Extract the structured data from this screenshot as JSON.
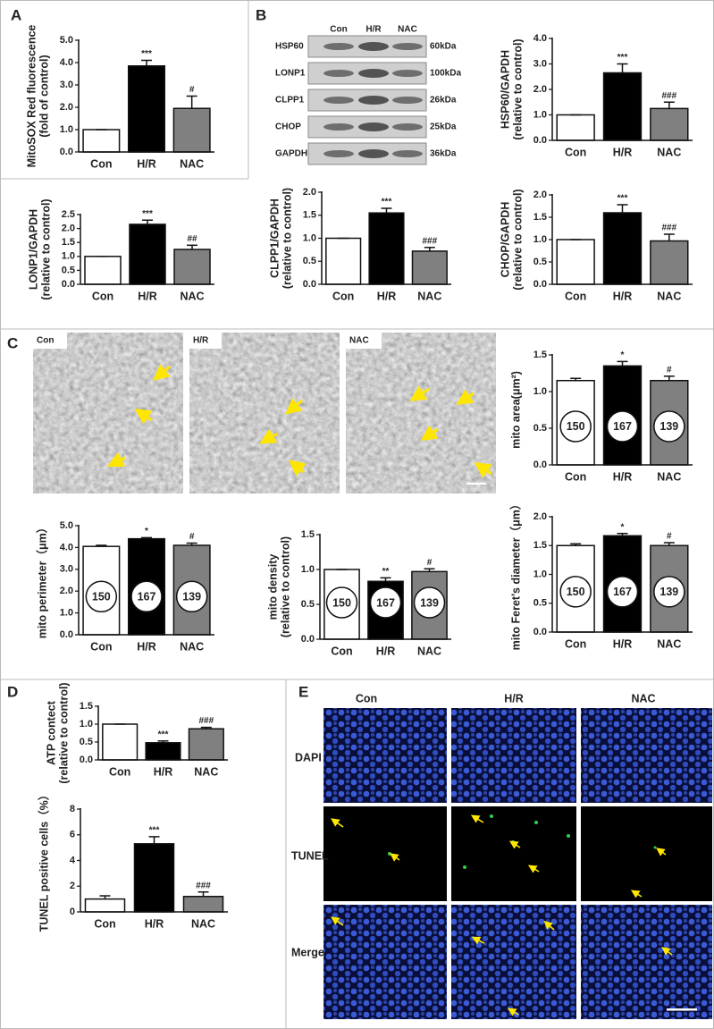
{
  "panel_labels": [
    "A",
    "B",
    "C",
    "D",
    "E"
  ],
  "blot": {
    "lanes": [
      "Con",
      "H/R",
      "NAC"
    ],
    "proteins": [
      {
        "name": "HSP60",
        "size": "60kDa"
      },
      {
        "name": "LONP1",
        "size": "100kDa"
      },
      {
        "name": "CLPP1",
        "size": "26kDa"
      },
      {
        "name": "CHOP",
        "size": "25kDa"
      },
      {
        "name": "GAPDH",
        "size": "36kDa"
      }
    ]
  },
  "em_labels": [
    "Con",
    "H/R",
    "NAC"
  ],
  "tunel_grid": {
    "columns": [
      "Con",
      "H/R",
      "NAC"
    ],
    "rows": [
      "DAPI",
      "TUNEL",
      "Merge"
    ]
  },
  "chart_data": [
    {
      "type": "bar",
      "ylabel": [
        "MitoSOX Red fluorescence",
        "(fold of control)"
      ],
      "categories": [
        "Con",
        "H/R",
        "NAC"
      ],
      "values": [
        1.0,
        3.85,
        1.95
      ],
      "errors": [
        0,
        0.25,
        0.55
      ],
      "annotations": [
        null,
        "***",
        "#"
      ],
      "colors": [
        "#ffffff",
        "#000000",
        "#808080"
      ],
      "ylim": [
        0,
        5
      ],
      "yticks": [
        {
          "value": 0,
          "label": "0.0"
        },
        {
          "value": 1,
          "label": "1.0"
        },
        {
          "value": 2,
          "label": "2.0"
        },
        {
          "value": 3,
          "label": "3.0"
        },
        {
          "value": 4,
          "label": "4.0"
        },
        {
          "value": 5,
          "label": "5.0"
        }
      ]
    },
    {
      "type": "bar",
      "ylabel": [
        "HSP60/GAPDH",
        "(relative to control)"
      ],
      "categories": [
        "Con",
        "H/R",
        "NAC"
      ],
      "values": [
        1.0,
        2.65,
        1.25
      ],
      "errors": [
        0,
        0.35,
        0.25
      ],
      "annotations": [
        null,
        "***",
        "###"
      ],
      "colors": [
        "#ffffff",
        "#000000",
        "#808080"
      ],
      "ylim": [
        0,
        4
      ],
      "yticks": [
        {
          "value": 0,
          "label": "0.0"
        },
        {
          "value": 1,
          "label": "1.0"
        },
        {
          "value": 2,
          "label": "2.0"
        },
        {
          "value": 3,
          "label": "3.0"
        },
        {
          "value": 4,
          "label": "4.0"
        }
      ]
    },
    {
      "type": "bar",
      "ylabel": [
        "LONP1/GAPDH",
        "(relative to control)"
      ],
      "categories": [
        "Con",
        "H/R",
        "NAC"
      ],
      "values": [
        1.0,
        2.15,
        1.25
      ],
      "errors": [
        0,
        0.15,
        0.15
      ],
      "annotations": [
        null,
        "***",
        "##"
      ],
      "colors": [
        "#ffffff",
        "#000000",
        "#808080"
      ],
      "ylim": [
        0,
        2.5
      ],
      "yticks": [
        {
          "value": 0,
          "label": "0.0"
        },
        0.5,
        {
          "value": 1,
          "label": "1.0"
        },
        1.5,
        {
          "value": 2,
          "label": "2.0"
        },
        2.5
      ]
    },
    {
      "type": "bar",
      "ylabel": [
        "CLPP1/GAPDH",
        "(relative to control)"
      ],
      "categories": [
        "Con",
        "H/R",
        "NAC"
      ],
      "values": [
        1.0,
        1.55,
        0.72
      ],
      "errors": [
        0,
        0.1,
        0.08
      ],
      "annotations": [
        null,
        "***",
        "###"
      ],
      "colors": [
        "#ffffff",
        "#000000",
        "#808080"
      ],
      "ylim": [
        0,
        2
      ],
      "yticks": [
        {
          "value": 0,
          "label": "0.0"
        },
        0.5,
        {
          "value": 1,
          "label": "1.0"
        },
        1.5,
        {
          "value": 2,
          "label": "2.0"
        }
      ]
    },
    {
      "type": "bar",
      "ylabel": [
        "CHOP/GAPDH",
        "(relative to control)"
      ],
      "categories": [
        "Con",
        "H/R",
        "NAC"
      ],
      "values": [
        1.0,
        1.6,
        0.97
      ],
      "errors": [
        0,
        0.18,
        0.15
      ],
      "annotations": [
        null,
        "***",
        "###"
      ],
      "colors": [
        "#ffffff",
        "#000000",
        "#808080"
      ],
      "ylim": [
        0,
        2
      ],
      "yticks": [
        {
          "value": 0,
          "label": "0.0"
        },
        0.5,
        {
          "value": 1,
          "label": "1.0"
        },
        1.5,
        {
          "value": 2,
          "label": "2.0"
        }
      ]
    },
    {
      "type": "bar",
      "ylabel": [
        "mito area(μm²)"
      ],
      "categories": [
        "Con",
        "H/R",
        "NAC"
      ],
      "values": [
        1.15,
        1.35,
        1.15
      ],
      "errors": [
        0.03,
        0.06,
        0.06
      ],
      "annotations": [
        null,
        "*",
        "#"
      ],
      "n_labels": [
        150,
        167,
        139
      ],
      "colors": [
        "#ffffff",
        "#000000",
        "#808080"
      ],
      "ylim": [
        0,
        1.5
      ],
      "yticks": [
        {
          "value": 0,
          "label": "0.0"
        },
        0.5,
        {
          "value": 1,
          "label": "1.0"
        },
        1.5
      ]
    },
    {
      "type": "bar",
      "ylabel": [
        "mito perimeter（μm）"
      ],
      "categories": [
        "Con",
        "H/R",
        "NAC"
      ],
      "values": [
        4.05,
        4.4,
        4.1
      ],
      "errors": [
        0.05,
        0.05,
        0.1
      ],
      "annotations": [
        null,
        "*",
        "#"
      ],
      "n_labels": [
        150,
        167,
        139
      ],
      "colors": [
        "#ffffff",
        "#000000",
        "#808080"
      ],
      "ylim": [
        0,
        5
      ],
      "yticks": [
        {
          "value": 0,
          "label": "0.0"
        },
        {
          "value": 1,
          "label": "1.0"
        },
        {
          "value": 2,
          "label": "2.0"
        },
        {
          "value": 3,
          "label": "3.0"
        },
        {
          "value": 4,
          "label": "4.0"
        },
        {
          "value": 5,
          "label": "5.0"
        }
      ]
    },
    {
      "type": "bar",
      "ylabel": [
        "mito density",
        "(relative to control)"
      ],
      "categories": [
        "Con",
        "H/R",
        "NAC"
      ],
      "values": [
        1.0,
        0.83,
        0.97
      ],
      "errors": [
        0,
        0.05,
        0.04
      ],
      "annotations": [
        null,
        "**",
        "#"
      ],
      "n_labels": [
        150,
        167,
        139
      ],
      "colors": [
        "#ffffff",
        "#000000",
        "#808080"
      ],
      "ylim": [
        0,
        1.5
      ],
      "yticks": [
        {
          "value": 0,
          "label": "0.0"
        },
        0.5,
        {
          "value": 1,
          "label": "1.0"
        },
        1.5
      ]
    },
    {
      "type": "bar",
      "ylabel": [
        "mito Feret's diameter（μm）"
      ],
      "categories": [
        "Con",
        "H/R",
        "NAC"
      ],
      "values": [
        1.5,
        1.67,
        1.5
      ],
      "errors": [
        0.03,
        0.04,
        0.05
      ],
      "annotations": [
        null,
        "*",
        "#"
      ],
      "n_labels": [
        150,
        167,
        139
      ],
      "colors": [
        "#ffffff",
        "#000000",
        "#808080"
      ],
      "ylim": [
        0,
        2
      ],
      "yticks": [
        {
          "value": 0,
          "label": "0.0"
        },
        0.5,
        {
          "value": 1,
          "label": "1.0"
        },
        1.5,
        {
          "value": 2,
          "label": "2.0"
        }
      ]
    },
    {
      "type": "bar",
      "ylabel": [
        "ATP contect",
        "(relative to control)"
      ],
      "categories": [
        "Con",
        "H/R",
        "NAC"
      ],
      "values": [
        1.0,
        0.48,
        0.87
      ],
      "errors": [
        0,
        0.05,
        0.04
      ],
      "annotations": [
        null,
        "***",
        "###"
      ],
      "colors": [
        "#ffffff",
        "#000000",
        "#808080"
      ],
      "ylim": [
        0,
        1.5
      ],
      "yticks": [
        {
          "value": 0,
          "label": "0.0"
        },
        0.5,
        {
          "value": 1,
          "label": "1.0"
        },
        1.5
      ]
    },
    {
      "type": "bar",
      "ylabel": [
        "TUNEL positive cells（%）"
      ],
      "categories": [
        "Con",
        "H/R",
        "NAC"
      ],
      "values": [
        1.0,
        5.3,
        1.2
      ],
      "errors": [
        0.25,
        0.55,
        0.35
      ],
      "annotations": [
        null,
        "***",
        "###"
      ],
      "colors": [
        "#ffffff",
        "#000000",
        "#808080"
      ],
      "ylim": [
        0,
        8
      ],
      "yticks": [
        0,
        2,
        4,
        6,
        8
      ]
    }
  ]
}
